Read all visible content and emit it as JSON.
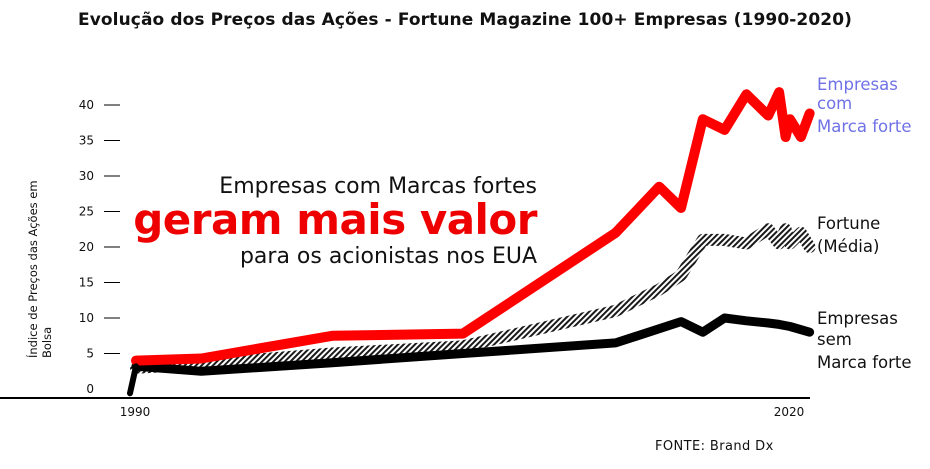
{
  "chart_data": {
    "type": "line",
    "title": "Evolução dos Preços das Ações - Fortune Magazine 100+ Empresas (1990-2020)",
    "ylabel": "Índice de Preços das Ações em Bolsa",
    "xlabel": "",
    "ylim": [
      0,
      40
    ],
    "xlim": [
      1990,
      2020
    ],
    "yticks": [
      "0",
      "5",
      "10",
      "15",
      "20",
      "25",
      "30",
      "35",
      "40"
    ],
    "xticks": [
      "1990",
      "2020"
    ],
    "grid": false,
    "series": [
      {
        "name": "Empresas com Marca forte",
        "color": "#ff0000",
        "x": [
          1990,
          1993,
          1999,
          2005,
          2012,
          2014,
          2015,
          2016,
          2017,
          2018,
          2019,
          2019.5,
          2019.8,
          2020,
          2020.5,
          2020.9
        ],
        "y": [
          4,
          4.3,
          7.5,
          7.8,
          22,
          28.5,
          25.5,
          38,
          36.5,
          41.5,
          38.5,
          41.8,
          35.5,
          38,
          35.5,
          38.8
        ]
      },
      {
        "name": "Fortune (Média)",
        "color": "#222222",
        "x": [
          1990,
          1993,
          1999,
          2005,
          2012,
          2014,
          2015,
          2016,
          2017,
          2018,
          2019,
          2019.5,
          2019.8,
          2020,
          2020.5,
          2020.9
        ],
        "y": [
          3,
          3.5,
          5,
          6,
          11,
          14,
          16,
          21,
          21,
          20.5,
          22.5,
          20.5,
          22.5,
          20.5,
          22,
          20
        ]
      },
      {
        "name": "Empresas sem Marca forte",
        "color": "#000000",
        "x": [
          1990,
          1993,
          1999,
          2005,
          2012,
          2015,
          2016,
          2017,
          2018,
          2019,
          2019.5,
          2020,
          2020.9
        ],
        "y": [
          3.2,
          2.5,
          3.7,
          5,
          6.5,
          9.5,
          8,
          10,
          9.6,
          9.3,
          9.1,
          8.8,
          8
        ]
      }
    ],
    "annotations": {
      "line1": "Empresas com Marcas fortes",
      "line2": "geram mais valor",
      "line3": "para os acionistas nos EUA"
    },
    "series_labels": {
      "strong": [
        "Empresas",
        "com",
        "Marca forte"
      ],
      "average": [
        "Fortune",
        "(Média)"
      ],
      "weak": [
        "Empresas",
        "sem",
        "Marca forte"
      ]
    },
    "source": "FONTE: Brand Dx"
  }
}
